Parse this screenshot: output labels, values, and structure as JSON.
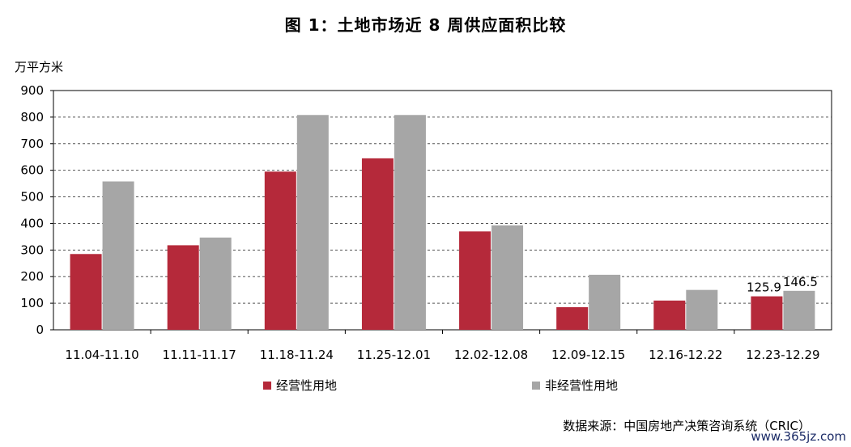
{
  "chart_data": {
    "type": "bar",
    "title": "图 1：土地市场近 8 周供应面积比较",
    "ylabel": "万平方米",
    "ylim": [
      0,
      900
    ],
    "yticks": [
      0,
      100,
      200,
      300,
      400,
      500,
      600,
      700,
      800,
      900
    ],
    "grid": true,
    "legend_position": "bottom",
    "categories": [
      "11.04-11.10",
      "11.11-11.17",
      "11.18-11.24",
      "11.25-12.01",
      "12.02-12.08",
      "12.09-12.15",
      "12.16-12.22",
      "12.23-12.29"
    ],
    "series": [
      {
        "name": "经营性用地",
        "color": "#b5293a",
        "values": [
          285,
          318,
          595,
          645,
          370,
          85,
          110,
          125.9
        ]
      },
      {
        "name": "非经营性用地",
        "color": "#a6a6a6",
        "values": [
          558,
          347,
          808,
          808,
          393,
          207,
          150,
          146.5
        ]
      }
    ],
    "data_labels": [
      {
        "series": 0,
        "index": 7,
        "text": "125.9"
      },
      {
        "series": 1,
        "index": 7,
        "text": "146.5"
      }
    ]
  },
  "source": "数据来源：中国房地产决策咨询系统（CRIC）",
  "watermark": "www.365jz.com"
}
